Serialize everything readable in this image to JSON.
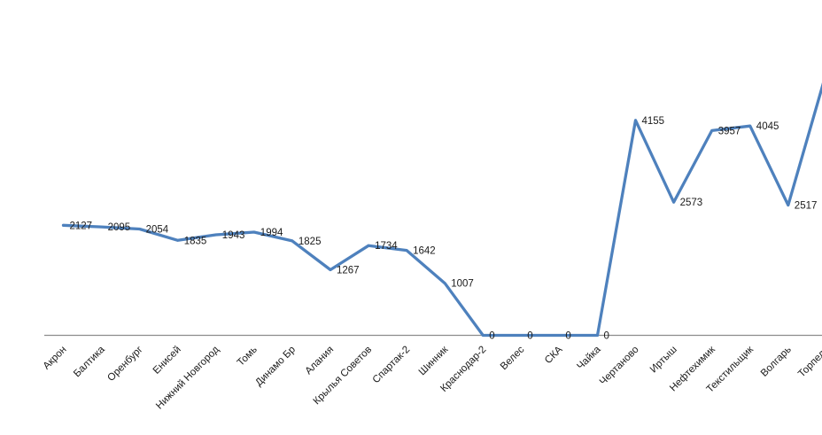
{
  "chart_data": {
    "type": "line",
    "title": "",
    "xlabel": "",
    "ylabel": "",
    "categories": [
      "Акрон",
      "Балтика",
      "Оренбург",
      "Енисей",
      "Нижний Новгород",
      "Томь",
      "Динамо Бр",
      "Алания",
      "Крылья Советов",
      "Спартак-2",
      "Шинник",
      "Краснодар-2",
      "Велес",
      "СКА",
      "Чайка",
      "Чертаново",
      "Иртыш",
      "Нефтехимик",
      "Текстильщик",
      "Волгарь",
      "Торпедо"
    ],
    "series": [
      {
        "name": "attendance",
        "values": [
          2127,
          2095,
          2054,
          1835,
          1943,
          1994,
          1825,
          1267,
          1734,
          1642,
          1007,
          0,
          0,
          0,
          0,
          4155,
          2573,
          3957,
          4045,
          2517,
          5076
        ]
      }
    ],
    "ylim": [
      0,
      6200
    ],
    "grid": false,
    "legend": false,
    "data_labels": true,
    "data_label_position": "right",
    "x_tick_rotation": -45,
    "colors": {
      "line": "#4E81BD",
      "axis": "#8C8C8C",
      "text": "#1A1A1A"
    }
  }
}
